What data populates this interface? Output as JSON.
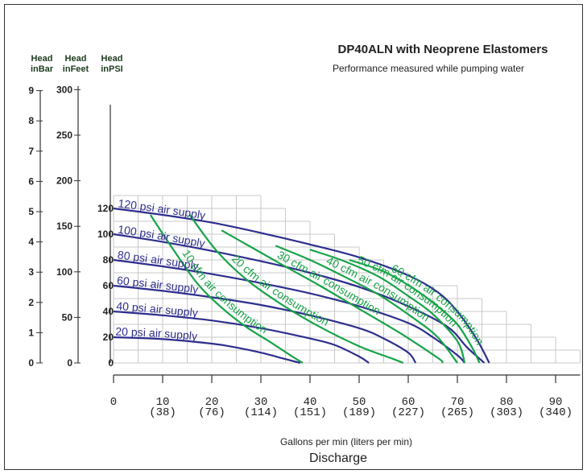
{
  "chart_data": {
    "type": "line",
    "title": "DP40ALN with Neoprene Elastomers",
    "subtitle": "Performance measured while pumping water",
    "xlabel": "Gallons per min (liters per min)",
    "xlabel2": "Discharge",
    "xlim": [
      0,
      95
    ],
    "xticks": [
      {
        "value": 0,
        "label": "0",
        "sub": ""
      },
      {
        "value": 10,
        "label": "10",
        "sub": "(38)"
      },
      {
        "value": 20,
        "label": "20",
        "sub": "(76)"
      },
      {
        "value": 30,
        "label": "30",
        "sub": "(114)"
      },
      {
        "value": 40,
        "label": "40",
        "sub": "(151)"
      },
      {
        "value": 50,
        "label": "50",
        "sub": "(189)"
      },
      {
        "value": 60,
        "label": "60",
        "sub": "(227)"
      },
      {
        "value": 70,
        "label": "70",
        "sub": "(265)"
      },
      {
        "value": 80,
        "label": "80",
        "sub": "(303)"
      },
      {
        "value": 90,
        "label": "90",
        "sub": "(340)"
      }
    ],
    "axes": [
      {
        "header": [
          "Head",
          "inBar"
        ],
        "ticks": [
          "0",
          "1",
          "2",
          "3",
          "4",
          "5",
          "6",
          "7",
          "8",
          "9"
        ]
      },
      {
        "header": [
          "Head",
          "inFeet"
        ],
        "ticks": [
          "0",
          "50",
          "100",
          "150",
          "200",
          "250",
          "300"
        ]
      },
      {
        "header": [
          "Head",
          "inPSI"
        ],
        "ticks": [
          "0",
          "20",
          "40",
          "60",
          "80",
          "100",
          "120"
        ]
      }
    ],
    "ylim_psi": [
      0,
      130
    ],
    "colors": {
      "supply": "#2e2e8e",
      "consumption": "#17a348",
      "grid": "#c8c8c8",
      "axis": "#333333"
    },
    "supply_series": [
      {
        "name": "120 psi air supply",
        "points": [
          [
            0,
            120
          ],
          [
            10,
            115
          ],
          [
            20,
            109
          ],
          [
            30,
            101
          ],
          [
            40,
            92
          ],
          [
            50,
            82
          ],
          [
            60,
            68
          ],
          [
            66,
            55
          ],
          [
            70,
            40
          ],
          [
            74,
            18
          ],
          [
            76.5,
            0
          ]
        ]
      },
      {
        "name": "100 psi air supply",
        "points": [
          [
            0,
            100
          ],
          [
            10,
            94
          ],
          [
            20,
            87
          ],
          [
            30,
            79
          ],
          [
            40,
            70
          ],
          [
            50,
            59
          ],
          [
            60,
            44
          ],
          [
            68,
            28
          ],
          [
            72,
            12
          ],
          [
            75.5,
            0
          ]
        ]
      },
      {
        "name": "80 psi air supply",
        "points": [
          [
            0,
            80
          ],
          [
            10,
            75
          ],
          [
            20,
            69
          ],
          [
            30,
            62
          ],
          [
            40,
            54
          ],
          [
            50,
            44
          ],
          [
            60,
            31
          ],
          [
            65,
            20
          ],
          [
            70,
            6
          ],
          [
            71.5,
            0
          ]
        ]
      },
      {
        "name": "60 psi air supply",
        "points": [
          [
            0,
            60
          ],
          [
            10,
            56
          ],
          [
            20,
            51
          ],
          [
            30,
            45
          ],
          [
            40,
            37
          ],
          [
            50,
            27
          ],
          [
            55,
            19
          ],
          [
            60,
            8
          ],
          [
            61.5,
            0
          ]
        ]
      },
      {
        "name": "40 psi air supply",
        "points": [
          [
            0,
            40
          ],
          [
            10,
            37
          ],
          [
            20,
            33
          ],
          [
            30,
            27
          ],
          [
            40,
            19
          ],
          [
            45,
            14
          ],
          [
            50,
            5
          ],
          [
            52,
            0
          ]
        ]
      },
      {
        "name": "20 psi air supply",
        "points": [
          [
            0,
            20
          ],
          [
            10,
            18.5
          ],
          [
            20,
            15
          ],
          [
            25,
            12
          ],
          [
            30,
            8
          ],
          [
            35,
            3
          ],
          [
            38,
            0
          ]
        ]
      }
    ],
    "consumption_series": [
      {
        "name": "10 cfm air consumption",
        "points": [
          [
            7.5,
            115
          ],
          [
            12,
            89
          ],
          [
            17,
            62
          ],
          [
            22,
            43
          ],
          [
            27,
            28
          ],
          [
            32,
            16
          ],
          [
            36,
            6
          ],
          [
            38.5,
            0
          ]
        ]
      },
      {
        "name": "20 cfm air consumption",
        "points": [
          [
            15.5,
            115
          ],
          [
            21,
            87
          ],
          [
            27,
            65
          ],
          [
            34,
            46
          ],
          [
            42,
            28
          ],
          [
            50,
            13
          ],
          [
            57,
            3
          ],
          [
            59,
            0
          ]
        ]
      },
      {
        "name": "30 cfm air consumption",
        "points": [
          [
            22,
            103
          ],
          [
            28,
            90
          ],
          [
            34,
            77
          ],
          [
            42,
            60
          ],
          [
            50,
            42
          ],
          [
            58,
            24
          ],
          [
            66,
            4
          ],
          [
            67,
            0
          ]
        ]
      },
      {
        "name": "40 cfm air consumption",
        "points": [
          [
            33,
            91
          ],
          [
            40,
            80
          ],
          [
            47,
            67
          ],
          [
            54,
            53
          ],
          [
            61,
            35
          ],
          [
            66,
            20
          ],
          [
            70,
            0
          ]
        ]
      },
      {
        "name": "50 cfm air consumption",
        "points": [
          [
            40,
            88
          ],
          [
            47,
            79
          ],
          [
            54,
            67
          ],
          [
            60,
            52
          ],
          [
            65,
            38
          ],
          [
            70,
            17
          ],
          [
            71.5,
            0
          ]
        ]
      },
      {
        "name": "60 cfm air consumption",
        "points": [
          [
            48,
            80
          ],
          [
            55,
            71
          ],
          [
            61,
            58
          ],
          [
            66,
            44
          ],
          [
            70,
            30
          ],
          [
            73,
            12
          ],
          [
            74.5,
            0
          ]
        ]
      }
    ]
  }
}
